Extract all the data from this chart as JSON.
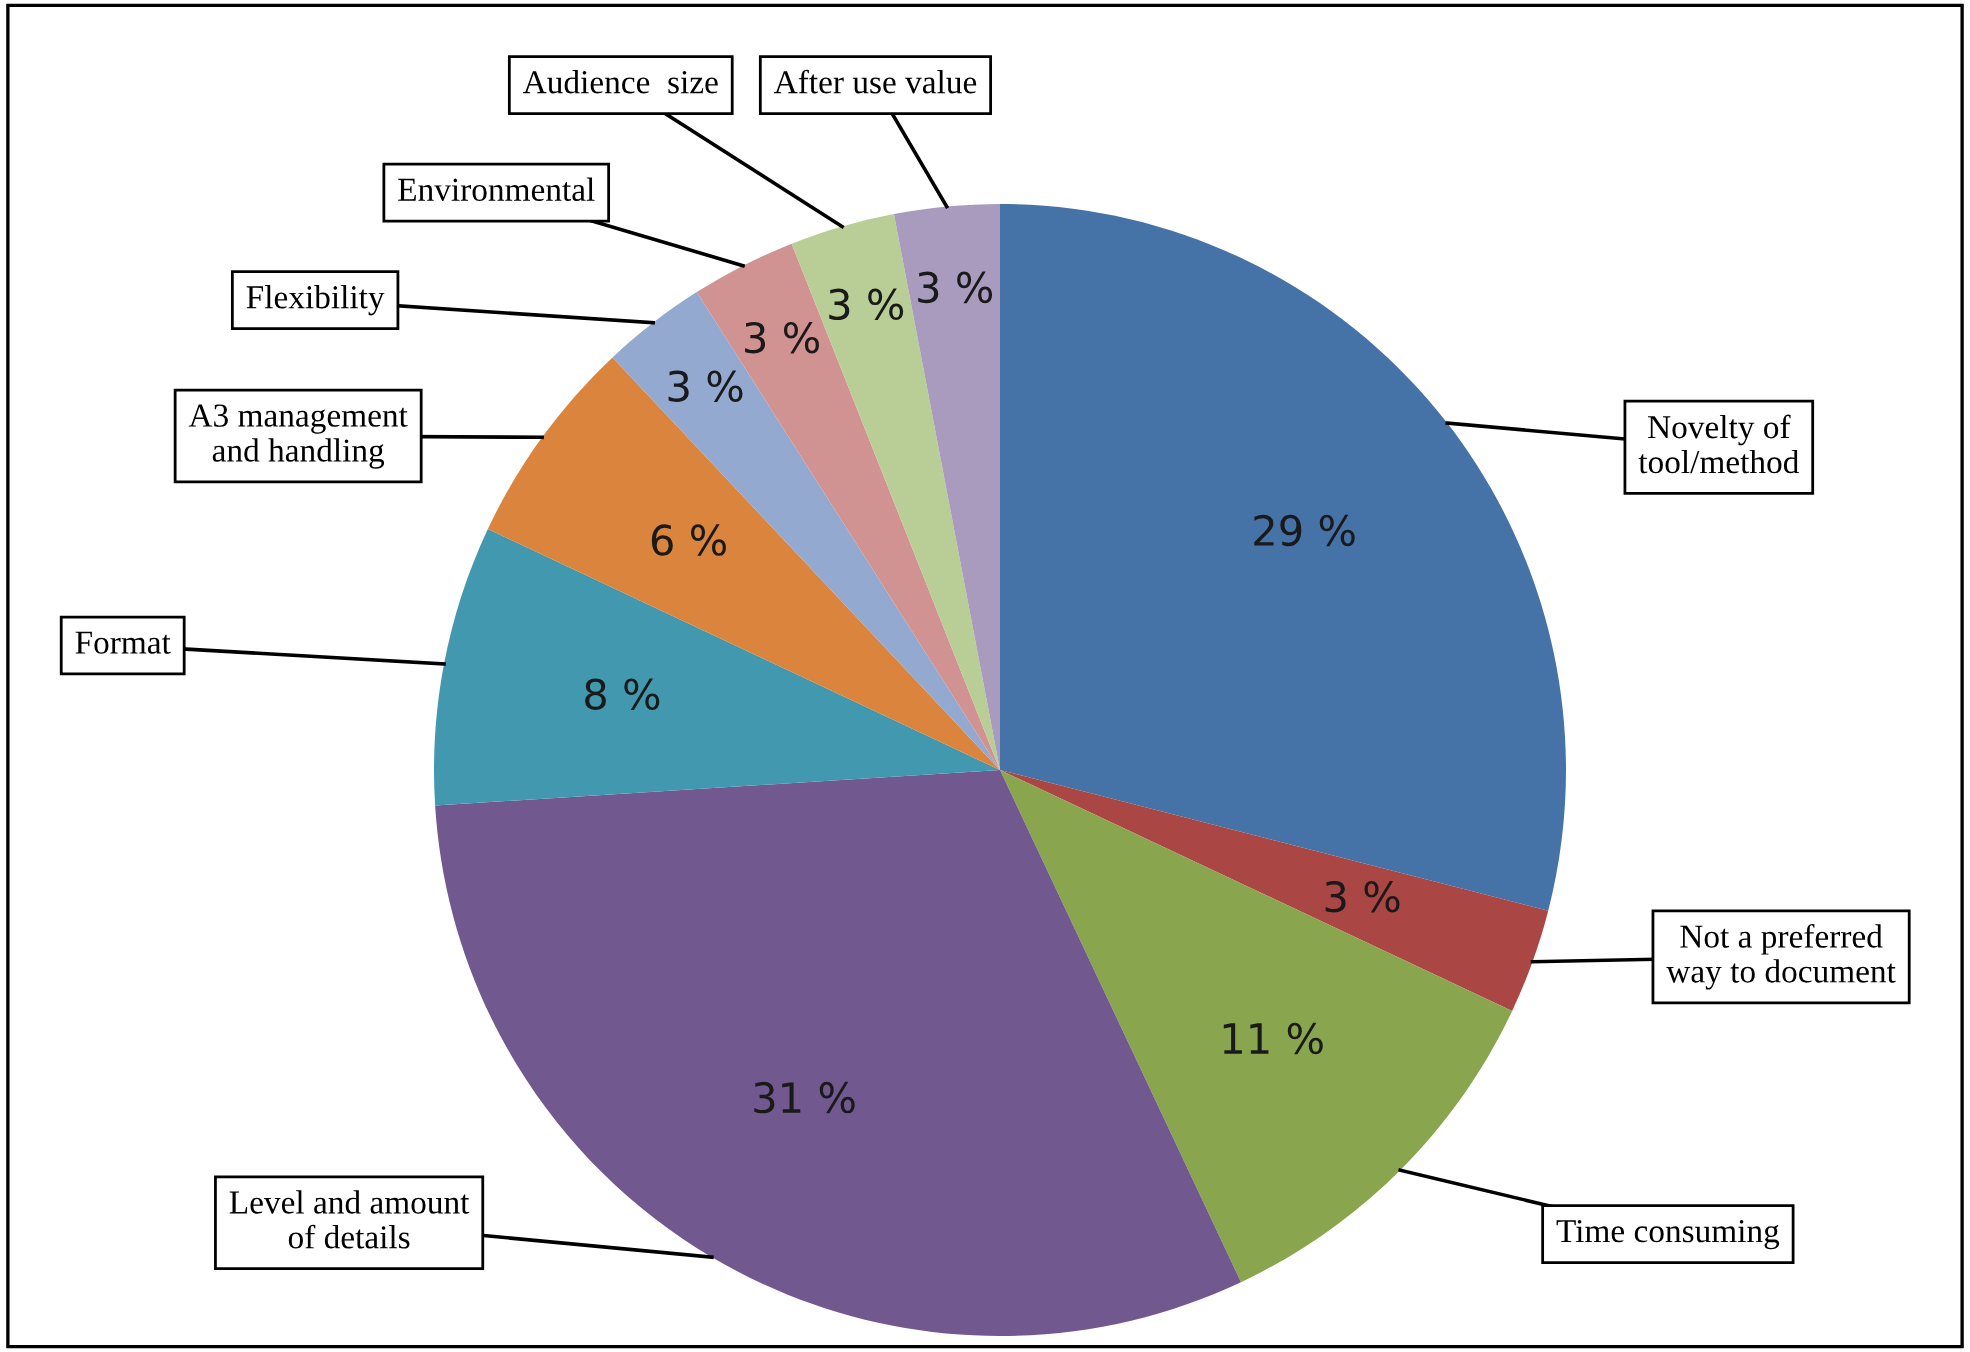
{
  "chart_data": {
    "type": "pie",
    "categories": [
      "Novelty of\ntool/method",
      "Not a preferred\nway to document",
      "Time consuming",
      "Level and amount\nof details",
      "Format",
      "A3 management\nand handling",
      "Flexibility",
      "Environmental",
      "Audience  size",
      "After use value"
    ],
    "values": [
      29,
      3,
      11,
      31,
      8,
      6,
      3,
      3,
      3,
      3
    ],
    "value_labels": [
      "29 %",
      "3 %",
      "11 %",
      "31 %",
      "8 %",
      "6 %",
      "3 %",
      "3 %",
      "3 %",
      "3 %"
    ],
    "colors": [
      "#4572a7",
      "#aa4643",
      "#89a54e",
      "#71588f",
      "#4198af",
      "#db843d",
      "#93a9cf",
      "#d19392",
      "#b9cd96",
      "#a99bbd"
    ],
    "legend": false
  }
}
